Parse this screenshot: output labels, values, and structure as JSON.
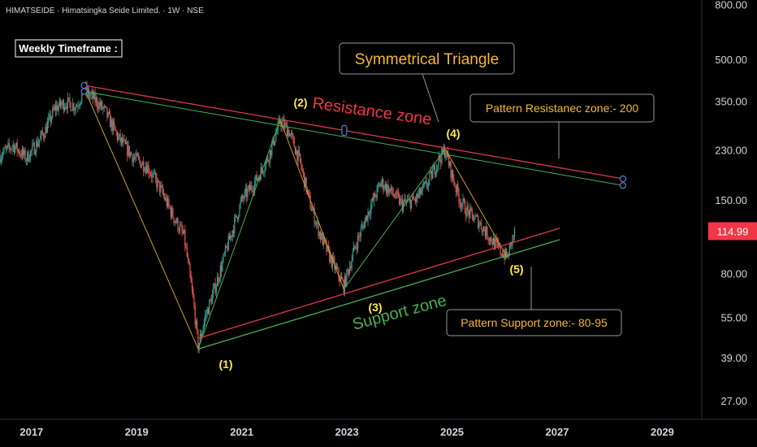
{
  "header": {
    "symbol_line": "HIMATSEIDE · Himatsingka Seide Limited. · 1W · NSE",
    "timeframe_label": "Weekly Timeframe :"
  },
  "annotations": {
    "pattern_title": "Symmetrical Triangle",
    "resistance_zone": "Resistance zone",
    "support_zone": "Support zone",
    "resistance_callout": "Pattern Resistanec zone:- 200",
    "support_callout": "Pattern Support zone:- 80-95",
    "wave_labels": [
      "(1)",
      "(2)",
      "(3)",
      "(4)",
      "(5)"
    ]
  },
  "colors": {
    "background": "#000000",
    "up_candle": "#26a69a",
    "down_candle": "#ef5350",
    "resistance_line": "#e0394a",
    "support_line": "#4caf50",
    "wave_up": "#4caf50",
    "wave_down": "#c9a227",
    "last_price_bg": "#f23645",
    "callout_text": "#f5b82e",
    "wave_label": "#ffeb3b"
  },
  "chart_data": {
    "type": "candlestick",
    "y_scale": "log",
    "ylim": [
      23,
      830
    ],
    "xlim": [
      2016.45,
      2029.8
    ],
    "y_ticks": [
      "800.00",
      "500.00",
      "350.00",
      "230.00",
      "150.00",
      "80.00",
      "55.00",
      "39.00",
      "27.00"
    ],
    "last_price": "114.99",
    "x_ticks": [
      "2017",
      "2019",
      "2021",
      "2023",
      "2025",
      "2027",
      "2029"
    ],
    "wave_points": [
      {
        "label": "(1)",
        "x": 2020.22,
        "y": 42
      },
      {
        "label": "(2)",
        "x": 2021.78,
        "y": 298
      },
      {
        "label": "(3)",
        "x": 2022.99,
        "y": 70
      },
      {
        "label": "(4)",
        "x": 2024.92,
        "y": 232
      },
      {
        "label": "(5)",
        "x": 2026.1,
        "y": 92
      }
    ],
    "wave_start": {
      "x": 2018.05,
      "y": 390
    },
    "resistance_line": {
      "x1": 2018.05,
      "y1": 400,
      "x2": 2028.3,
      "y2": 180
    },
    "resistance_inner_line": {
      "x1": 2018.05,
      "y1": 380,
      "x2": 2028.3,
      "y2": 170
    },
    "support_line": {
      "x1": 2020.22,
      "y1": 42,
      "x2": 2027.1,
      "y2": 107
    },
    "support_outer_line": {
      "x1": 2020.22,
      "y1": 46,
      "x2": 2027.1,
      "y2": 118
    },
    "price_path": [
      [
        2016.45,
        220
      ],
      [
        2016.7,
        240
      ],
      [
        2016.95,
        215
      ],
      [
        2017.1,
        235
      ],
      [
        2017.3,
        270
      ],
      [
        2017.5,
        330
      ],
      [
        2017.7,
        345
      ],
      [
        2017.9,
        335
      ],
      [
        2018.05,
        385
      ],
      [
        2018.25,
        355
      ],
      [
        2018.45,
        320
      ],
      [
        2018.7,
        255
      ],
      [
        2019.0,
        215
      ],
      [
        2019.25,
        200
      ],
      [
        2019.5,
        165
      ],
      [
        2019.75,
        130
      ],
      [
        2019.95,
        110
      ],
      [
        2020.12,
        65
      ],
      [
        2020.22,
        43
      ],
      [
        2020.35,
        55
      ],
      [
        2020.55,
        72
      ],
      [
        2020.8,
        105
      ],
      [
        2021.05,
        150
      ],
      [
        2021.3,
        175
      ],
      [
        2021.55,
        215
      ],
      [
        2021.78,
        295
      ],
      [
        2021.95,
        270
      ],
      [
        2022.15,
        210
      ],
      [
        2022.35,
        145
      ],
      [
        2022.55,
        110
      ],
      [
        2022.75,
        90
      ],
      [
        2022.99,
        72
      ],
      [
        2023.2,
        100
      ],
      [
        2023.45,
        135
      ],
      [
        2023.7,
        175
      ],
      [
        2023.9,
        160
      ],
      [
        2024.1,
        145
      ],
      [
        2024.35,
        150
      ],
      [
        2024.6,
        175
      ],
      [
        2024.78,
        210
      ],
      [
        2024.92,
        230
      ],
      [
        2025.05,
        185
      ],
      [
        2025.2,
        150
      ],
      [
        2025.35,
        135
      ],
      [
        2025.55,
        125
      ],
      [
        2025.75,
        110
      ],
      [
        2025.95,
        98
      ],
      [
        2026.1,
        92
      ],
      [
        2026.2,
        108
      ],
      [
        2026.25,
        115
      ]
    ]
  }
}
